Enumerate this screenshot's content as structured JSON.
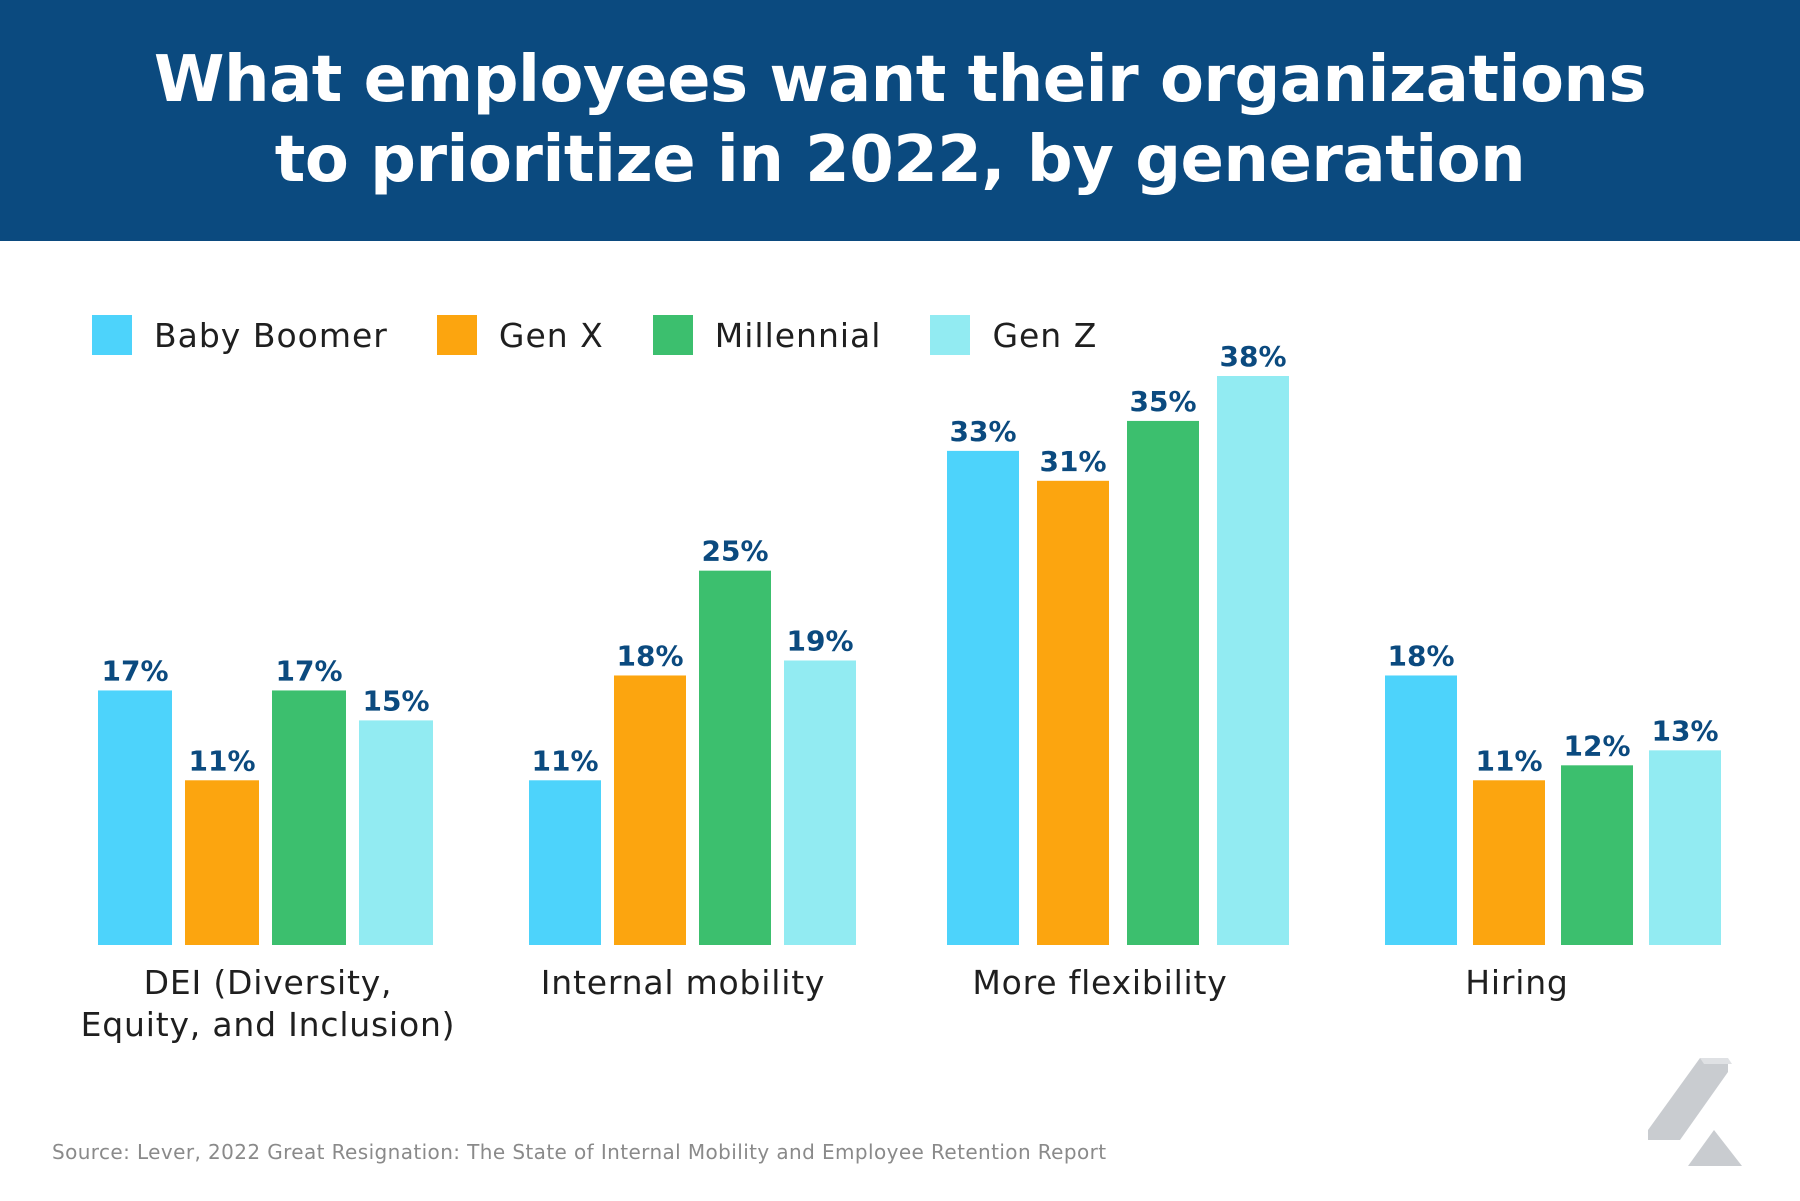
{
  "title": {
    "line1": "What employees want their organizations",
    "line2": "to prioritize in 2022, by generation"
  },
  "colors": {
    "header_bg": "#0b4a7f",
    "value_label": "#0b4a7f",
    "Baby Boomer": "#4dd3fb",
    "Gen X": "#fca50f",
    "Millennial": "#3cbf6e",
    "Gen Z": "#92ebf2"
  },
  "chart_data": {
    "type": "bar",
    "title": "What employees want their organizations to prioritize in 2022, by generation",
    "categories": [
      "DEI (Diversity, Equity, and Inclusion)",
      "Internal mobility",
      "More flexibility",
      "Hiring"
    ],
    "category_lines": [
      [
        "DEI (Diversity,",
        "Equity, and Inclusion)"
      ],
      [
        "Internal mobility"
      ],
      [
        "More flexibility"
      ],
      [
        "Hiring"
      ]
    ],
    "series": [
      {
        "name": "Baby Boomer",
        "values": [
          17,
          11,
          33,
          18
        ]
      },
      {
        "name": "Gen X",
        "values": [
          11,
          18,
          31,
          11
        ]
      },
      {
        "name": "Millennial",
        "values": [
          17,
          25,
          35,
          12
        ]
      },
      {
        "name": "Gen Z",
        "values": [
          15,
          19,
          38,
          13
        ]
      }
    ],
    "value_suffix": "%",
    "xlabel": "",
    "ylabel": "",
    "ylim": [
      0,
      40
    ],
    "grid": false,
    "legend_position": "top-left"
  },
  "source": "Source: Lever, 2022 Great Resignation: The State of Internal Mobility and Employee Retention Report",
  "logo_icon": "lever-logo-icon"
}
